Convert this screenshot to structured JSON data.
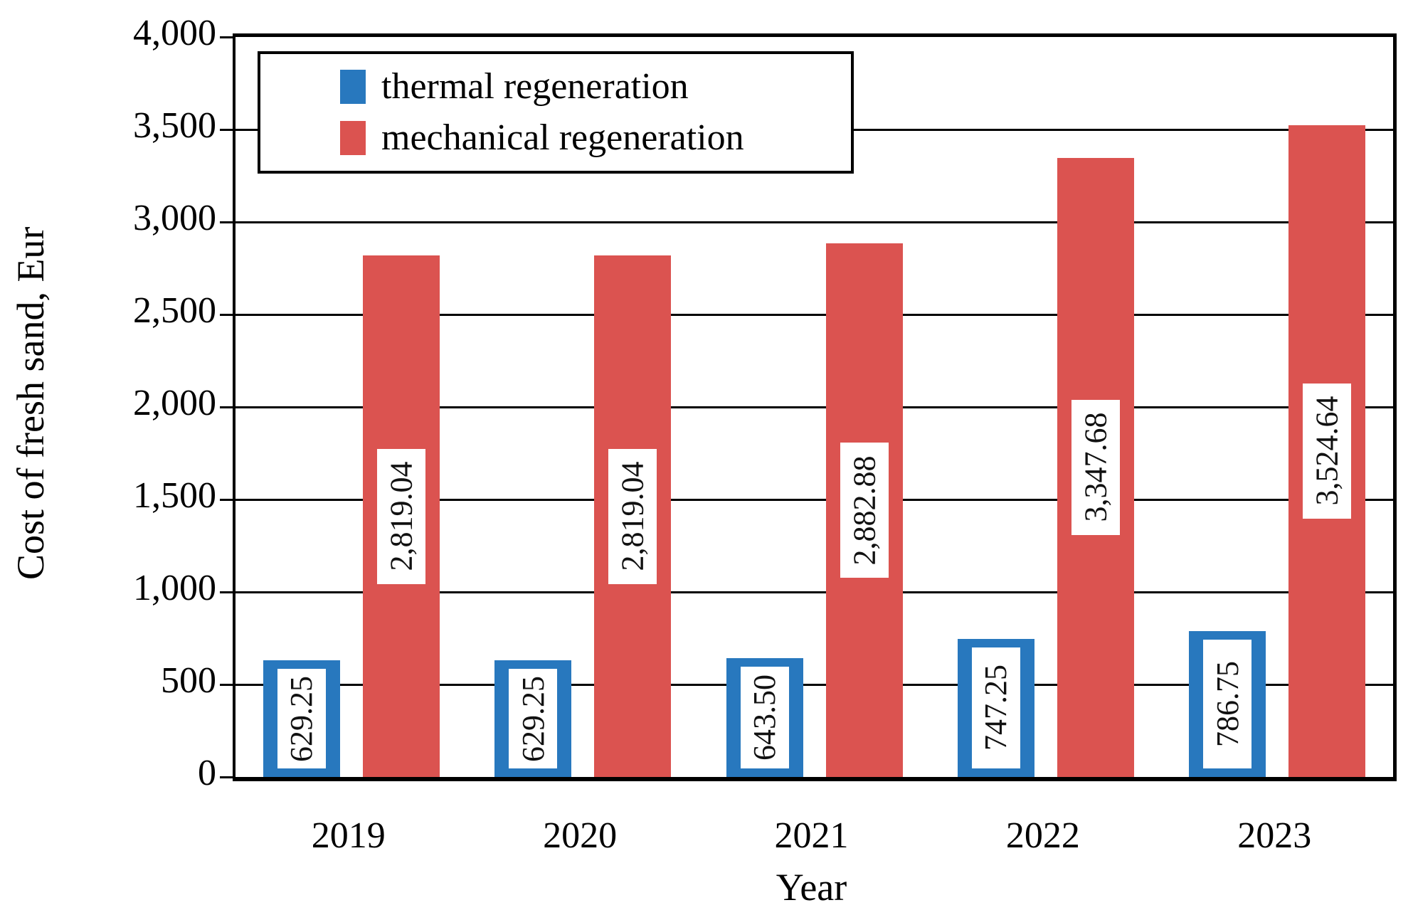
{
  "figure": {
    "ylabel": "Cost of fresh sand, Eur",
    "xlabel": "Year"
  },
  "legend": {
    "items": [
      {
        "label": "thermal regeneration",
        "color": "#2878BE"
      },
      {
        "label": "mechanical regeneration",
        "color": "#DB5350"
      }
    ]
  },
  "chart_data": {
    "type": "bar",
    "categories": [
      "2019",
      "2020",
      "2021",
      "2022",
      "2023"
    ],
    "series": [
      {
        "name": "thermal regeneration",
        "color": "#2878BE",
        "values": [
          629.25,
          629.25,
          643.5,
          747.25,
          786.75
        ],
        "labels": [
          "629.25",
          "629.25",
          "643.50",
          "747.25",
          "786.75"
        ]
      },
      {
        "name": "mechanical regeneration",
        "color": "#DB5350",
        "values": [
          2819.04,
          2819.04,
          2882.88,
          3347.68,
          3524.64
        ],
        "labels": [
          "2,819.04",
          "2,819.04",
          "2,882.88",
          "3,347.68",
          "3,524.64"
        ]
      }
    ],
    "title": "",
    "xlabel": "Year",
    "ylabel": "Cost of fresh sand, Eur",
    "ylim": [
      0,
      4000
    ],
    "yticks": [
      {
        "value": 0,
        "label": "0"
      },
      {
        "value": 500,
        "label": "500"
      },
      {
        "value": 1000,
        "label": "1,000"
      },
      {
        "value": 1500,
        "label": "1,500"
      },
      {
        "value": 2000,
        "label": "2,000"
      },
      {
        "value": 2500,
        "label": "2,500"
      },
      {
        "value": 3000,
        "label": "3,000"
      },
      {
        "value": 3500,
        "label": "3,500"
      },
      {
        "value": 4000,
        "label": "4,000"
      }
    ],
    "grid": "horizontal",
    "legend_position": "top-left-inside",
    "bar_value_labels": "rotated-90-white-box-inside-bar"
  }
}
